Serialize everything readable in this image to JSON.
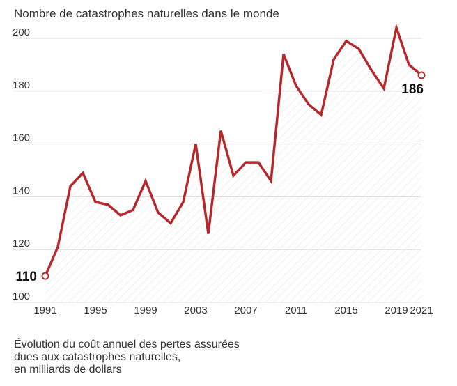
{
  "title": "Nombre de catastrophes naturelles dans le monde",
  "footnote": {
    "lines": [
      "Évolution du coût annuel des pertes assurées",
      "dues aux catastrophes naturelles,",
      "en milliards de dollars"
    ]
  },
  "colors": {
    "line": "#b5282c",
    "grid": "#dcdcdc",
    "hatch": "#e2e2e2",
    "text": "#333333"
  },
  "chart_data": {
    "type": "line",
    "title": "Nombre de catastrophes naturelles dans le monde",
    "xlabel": "",
    "ylabel": "",
    "x": [
      1991,
      1992,
      1993,
      1994,
      1995,
      1996,
      1997,
      1998,
      1999,
      2000,
      2001,
      2002,
      2003,
      2004,
      2005,
      2006,
      2007,
      2008,
      2009,
      2010,
      2011,
      2012,
      2013,
      2014,
      2015,
      2016,
      2017,
      2018,
      2019,
      2020,
      2021
    ],
    "series": [
      {
        "name": "",
        "values": [
          110,
          121,
          144,
          149,
          138,
          137,
          133,
          135,
          146,
          134,
          130,
          138,
          160,
          126,
          165,
          148,
          153,
          153,
          146,
          194,
          182,
          175,
          171,
          192,
          199,
          196,
          188,
          181,
          204,
          190,
          186
        ]
      }
    ],
    "xticks": [
      1991,
      1995,
      1999,
      2003,
      2007,
      2011,
      2015,
      2019,
      2021
    ],
    "yticks": [
      100,
      120,
      140,
      160,
      180,
      200
    ],
    "xlim": [
      1991,
      2021
    ],
    "ylim": [
      100,
      205
    ],
    "grid": "horizontal",
    "area_fill": "hatched",
    "annotations": [
      {
        "x": 1991,
        "y": 110,
        "text": "110"
      },
      {
        "x": 2021,
        "y": 186,
        "text": "186"
      }
    ]
  }
}
